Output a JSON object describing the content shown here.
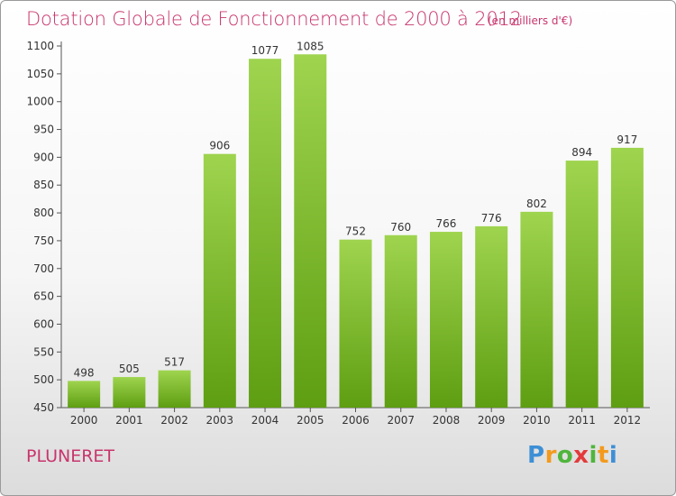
{
  "title": "Dotation Globale de Fonctionnement de 2000 à 2012",
  "unit_note": "(en milliers d'€)",
  "place_name": "PLUNERET",
  "logo_text": "Proxiti",
  "colors": {
    "title": "#c8356d",
    "bar_top": "#9fd44f",
    "bar_bottom": "#5e9e12",
    "axis": "#555555"
  },
  "chart_data": {
    "type": "bar",
    "title": "Dotation Globale de Fonctionnement de 2000 à 2012",
    "xlabel": "",
    "ylabel": "",
    "categories": [
      "2000",
      "2001",
      "2002",
      "2003",
      "2004",
      "2005",
      "2006",
      "2007",
      "2008",
      "2009",
      "2010",
      "2011",
      "2012"
    ],
    "values": [
      498,
      505,
      517,
      906,
      1077,
      1085,
      752,
      760,
      766,
      776,
      802,
      894,
      917
    ],
    "ylim": [
      450,
      1100
    ],
    "yticks": [
      450,
      500,
      550,
      600,
      650,
      700,
      750,
      800,
      850,
      900,
      950,
      1000,
      1050,
      1100
    ],
    "grid": false,
    "data_labels": true
  }
}
